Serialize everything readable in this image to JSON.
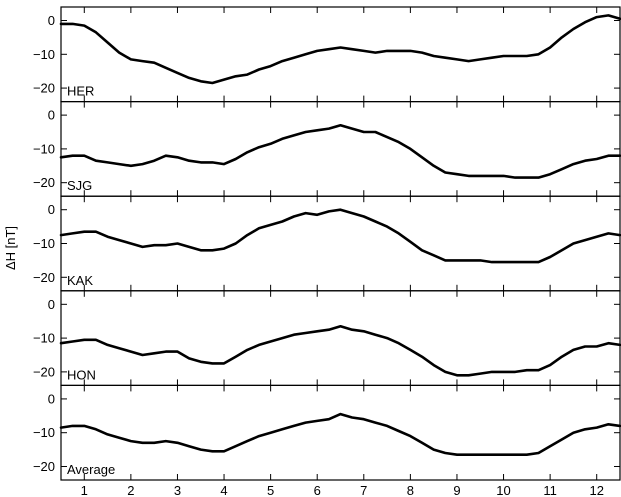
{
  "chart_data": {
    "type": "line",
    "ylabel": "ΔH [nT]",
    "xlim": [
      0.5,
      12.5
    ],
    "ylim": [
      -24,
      4
    ],
    "xticks": [
      1,
      2,
      3,
      4,
      5,
      6,
      7,
      8,
      9,
      10,
      11,
      12
    ],
    "xtick_labels": [
      "1",
      "2",
      "3",
      "4",
      "5",
      "6",
      "7",
      "8",
      "9",
      "10",
      "11",
      "12"
    ],
    "yticks": [
      0,
      -10,
      -20
    ],
    "ytick_labels": [
      "0",
      "−10",
      "−20"
    ],
    "x": [
      0.5,
      0.75,
      1.0,
      1.25,
      1.5,
      1.75,
      2.0,
      2.25,
      2.5,
      2.75,
      3.0,
      3.25,
      3.5,
      3.75,
      4.0,
      4.25,
      4.5,
      4.75,
      5.0,
      5.25,
      5.5,
      5.75,
      6.0,
      6.25,
      6.5,
      6.75,
      7.0,
      7.25,
      7.5,
      7.75,
      8.0,
      8.25,
      8.5,
      8.75,
      9.0,
      9.25,
      9.5,
      9.75,
      10.0,
      10.25,
      10.5,
      10.75,
      11.0,
      11.25,
      11.5,
      11.75,
      12.0,
      12.25,
      12.5
    ],
    "series": [
      {
        "name": "HER",
        "values": [
          -1,
          -1,
          -1.5,
          -3.5,
          -6.5,
          -9.5,
          -11.5,
          -12,
          -12.5,
          -14,
          -15.5,
          -17,
          -18,
          -18.5,
          -17.5,
          -16.5,
          -16,
          -14.5,
          -13.5,
          -12,
          -11,
          -10,
          -9,
          -8.5,
          -8,
          -8.5,
          -9,
          -9.5,
          -9,
          -9,
          -9,
          -9.5,
          -10.5,
          -11,
          -11.5,
          -12,
          -11.5,
          -11,
          -10.5,
          -10.5,
          -10.5,
          -10,
          -8,
          -5,
          -2.5,
          -0.5,
          1,
          1.5,
          0.5
        ]
      },
      {
        "name": "SJG",
        "values": [
          -12.5,
          -12,
          -12,
          -13.5,
          -14,
          -14.5,
          -15,
          -14.5,
          -13.5,
          -12,
          -12.5,
          -13.5,
          -14,
          -14,
          -14.5,
          -13,
          -11,
          -9.5,
          -8.5,
          -7,
          -6,
          -5,
          -4.5,
          -4,
          -3,
          -4,
          -5,
          -5,
          -6.5,
          -8,
          -10,
          -12.5,
          -15,
          -17,
          -17.5,
          -18,
          -18,
          -18,
          -18,
          -18.5,
          -18.5,
          -18.5,
          -17.5,
          -16,
          -14.5,
          -13.5,
          -13,
          -12,
          -12
        ]
      },
      {
        "name": "KAK",
        "values": [
          -7.5,
          -7,
          -6.5,
          -6.5,
          -8,
          -9,
          -10,
          -11,
          -10.5,
          -10.5,
          -10,
          -11,
          -12,
          -12,
          -11.5,
          -10,
          -7.5,
          -5.5,
          -4.5,
          -3.5,
          -2,
          -1,
          -1.5,
          -0.5,
          0,
          -1,
          -2,
          -3.5,
          -5,
          -7,
          -9.5,
          -12,
          -13.5,
          -15,
          -15,
          -15,
          -15,
          -15.5,
          -15.5,
          -15.5,
          -15.5,
          -15.5,
          -14,
          -12,
          -10,
          -9,
          -8,
          -7,
          -7.5
        ]
      },
      {
        "name": "HON",
        "values": [
          -11.5,
          -11,
          -10.5,
          -10.5,
          -12,
          -13,
          -14,
          -15,
          -14.5,
          -14,
          -14,
          -16,
          -17,
          -17.5,
          -17.5,
          -15.5,
          -13.5,
          -12,
          -11,
          -10,
          -9,
          -8.5,
          -8,
          -7.5,
          -6.5,
          -7.5,
          -8,
          -9,
          -10,
          -11.5,
          -13.5,
          -15.5,
          -18,
          -20,
          -21,
          -21,
          -20.5,
          -20,
          -20,
          -20,
          -19.5,
          -19.5,
          -18,
          -15.5,
          -13.5,
          -12.5,
          -12.5,
          -11.5,
          -12
        ]
      },
      {
        "name": "Average",
        "values": [
          -8.5,
          -8,
          -8,
          -9,
          -10.5,
          -11.5,
          -12.5,
          -13,
          -13,
          -12.5,
          -13,
          -14,
          -15,
          -15.5,
          -15.5,
          -14,
          -12.5,
          -11,
          -10,
          -9,
          -8,
          -7,
          -6.5,
          -6,
          -4.5,
          -5.5,
          -6,
          -7,
          -8,
          -9.5,
          -11,
          -13,
          -15,
          -16,
          -16.5,
          -16.5,
          -16.5,
          -16.5,
          -16.5,
          -16.5,
          -16.5,
          -16,
          -14,
          -12,
          -10,
          -9,
          -8.5,
          -7.5,
          -8
        ]
      }
    ]
  }
}
